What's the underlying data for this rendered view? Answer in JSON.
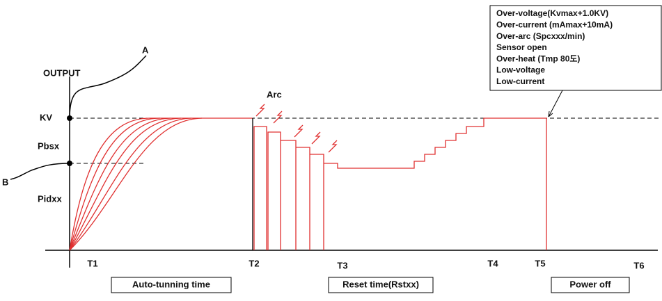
{
  "labels": {
    "a": "A",
    "b": "B",
    "output": "OUTPUT",
    "kv": "KV",
    "pbsx": "Pbsx",
    "pidxx": "Pidxx",
    "arc": "Arc"
  },
  "times": [
    "T1",
    "T2",
    "T3",
    "T4",
    "T5",
    "T6"
  ],
  "phases": {
    "auto_tuning": "Auto-tunning time",
    "reset": "Reset time(Rstxx)",
    "power_off": "Power off"
  },
  "faults": [
    "Over-voltage(Kvmax+1.0KV)",
    "Over-current (mAmax+10mA)",
    "Over-arc (Spcxxx/min)",
    "Sensor open",
    "Over-heat (Tmp 80도)",
    "Low-voltage",
    "Low-current"
  ]
}
